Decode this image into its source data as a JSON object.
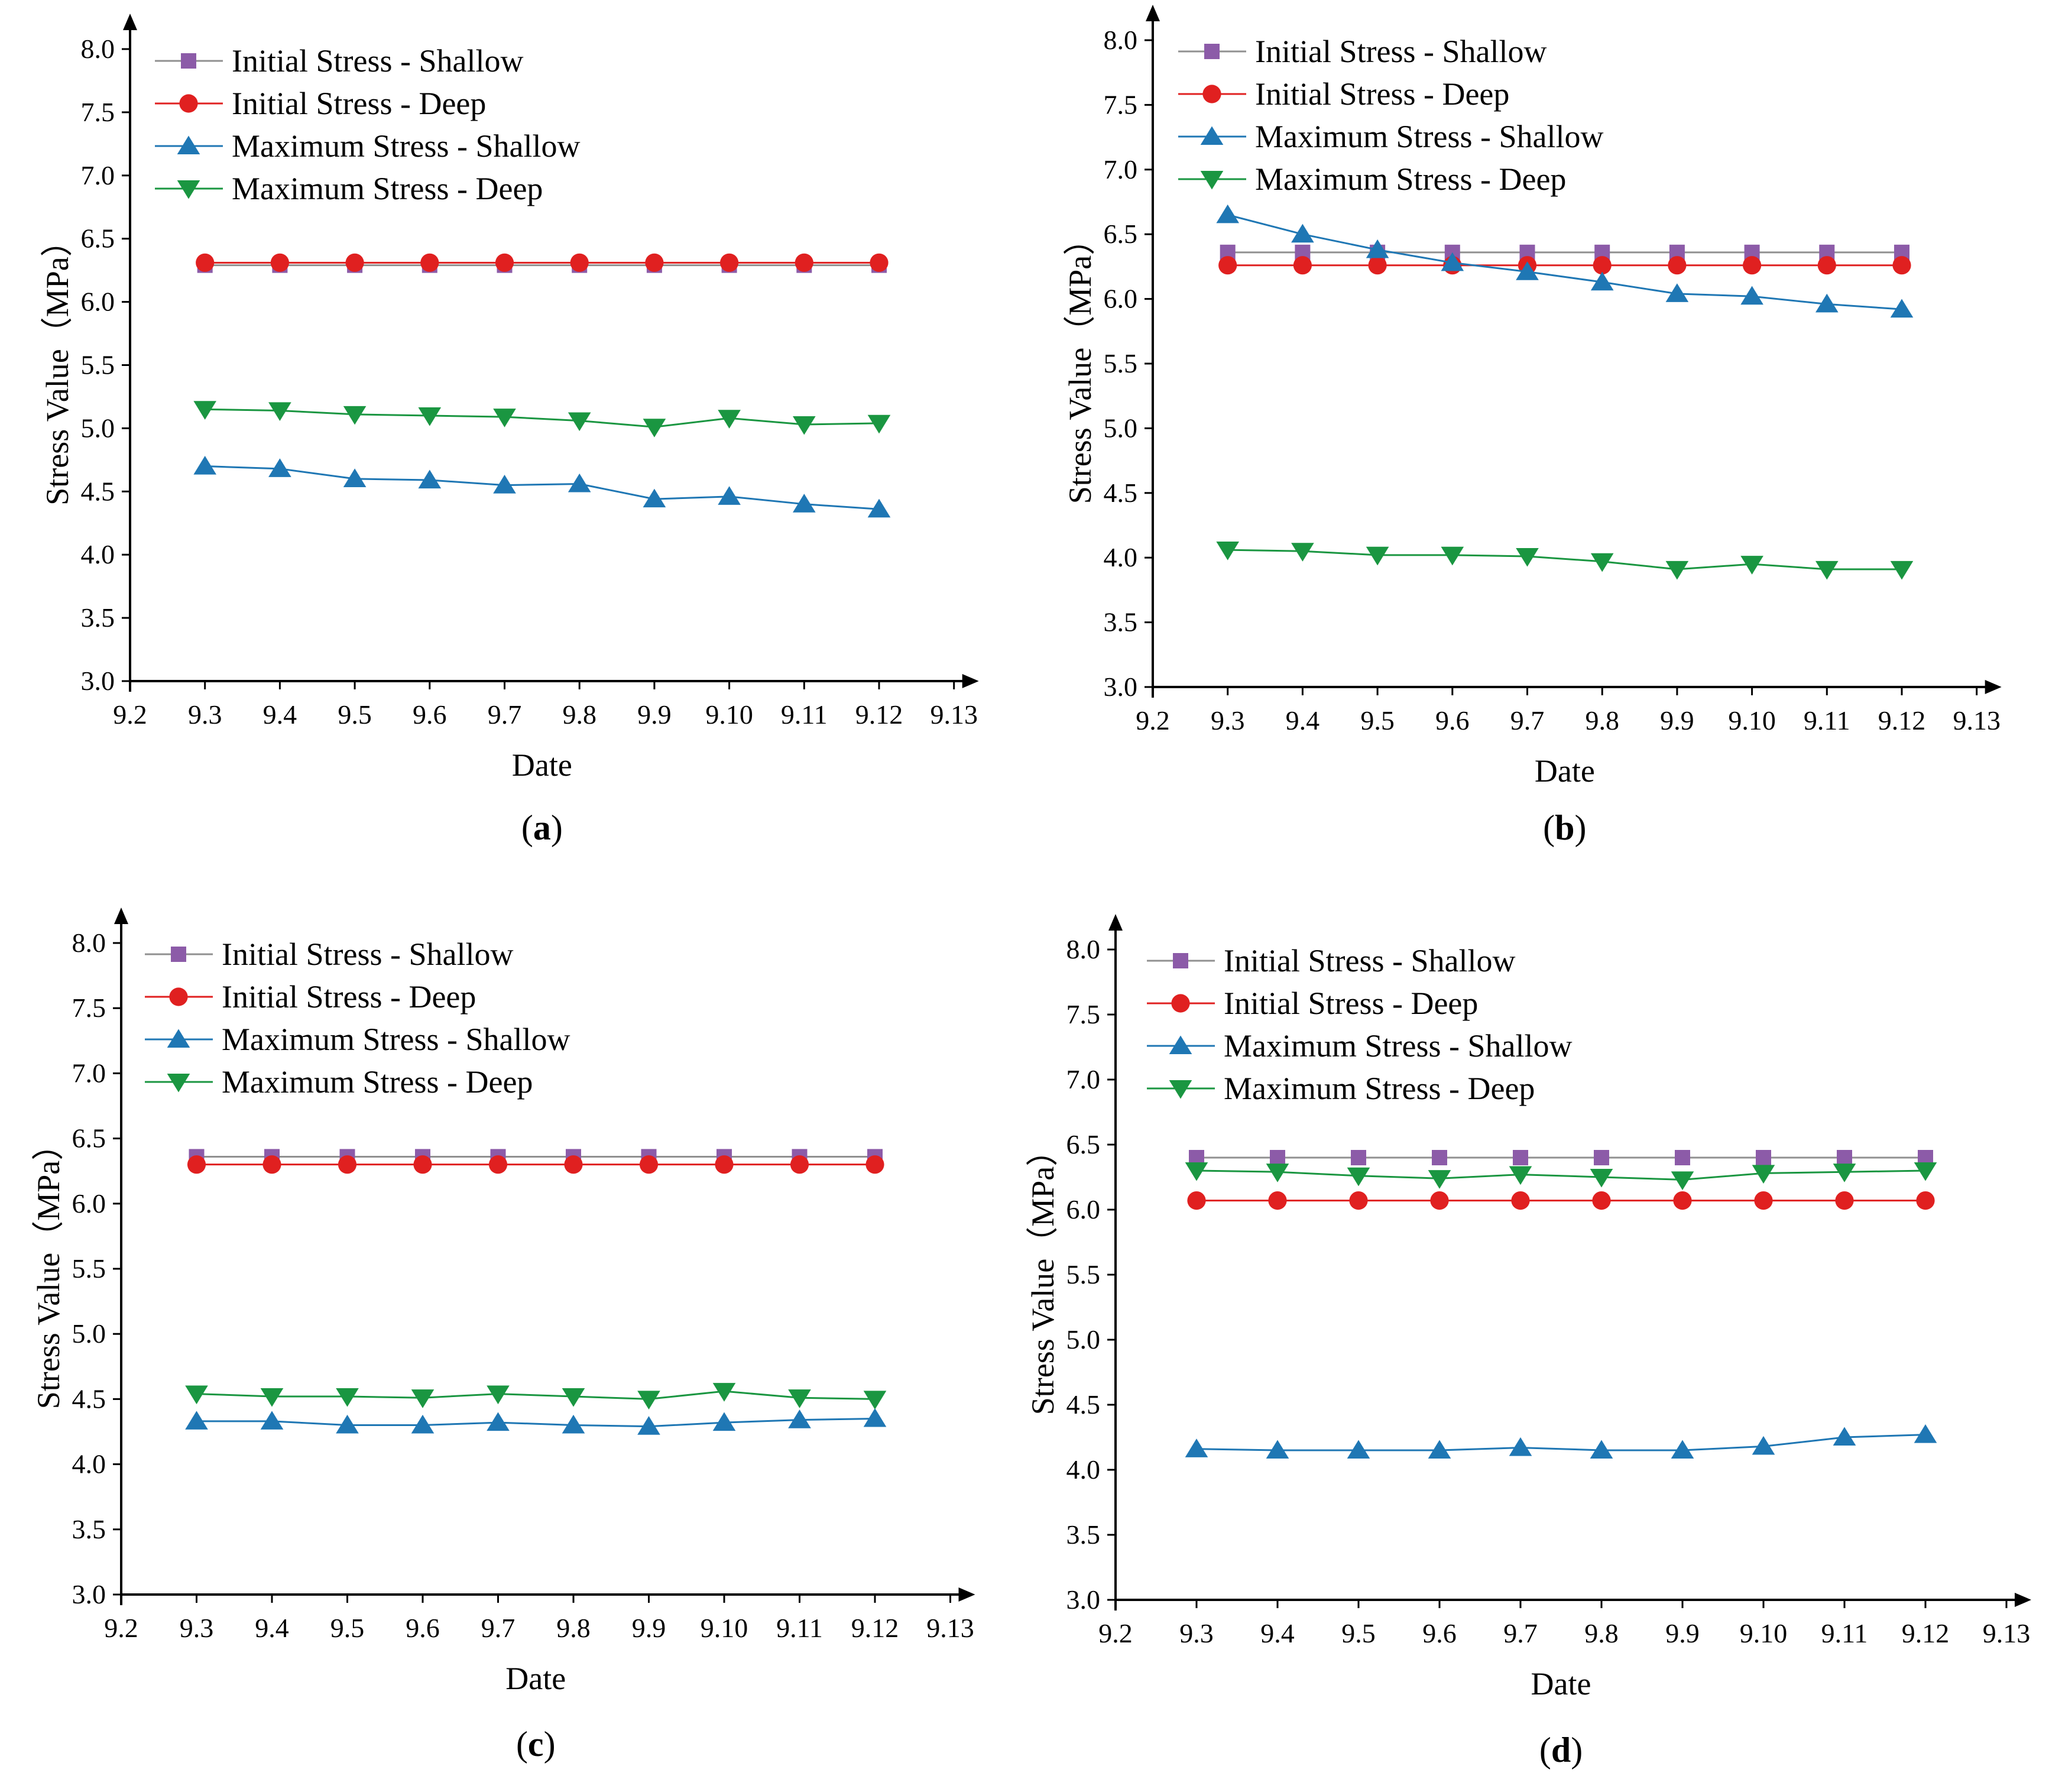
{
  "chart_data": [
    {
      "type": "line",
      "panel_label": "a",
      "xlabel": "Date",
      "ylabel": "Stress Value（MPa）",
      "x_ticks": [
        "9.2",
        "9.3",
        "9.4",
        "9.5",
        "9.6",
        "9.7",
        "9.8",
        "9.9",
        "9.10",
        "9.11",
        "9.12",
        "9.13"
      ],
      "categories": [
        "9.3",
        "9.4",
        "9.5",
        "9.6",
        "9.7",
        "9.8",
        "9.9",
        "9.10",
        "9.11",
        "9.12"
      ],
      "ylim": [
        3.0,
        8.0
      ],
      "y_ticks": [
        "3.0",
        "3.5",
        "4.0",
        "4.5",
        "5.0",
        "5.5",
        "6.0",
        "6.5",
        "7.0",
        "7.5",
        "8.0"
      ],
      "legend_position": "top-left",
      "series": [
        {
          "name": "Initial Stress - Shallow",
          "marker": "square",
          "color": "#8c5ba8",
          "line_color": "#909090",
          "values": [
            6.29,
            6.29,
            6.29,
            6.29,
            6.29,
            6.29,
            6.29,
            6.29,
            6.29,
            6.29
          ]
        },
        {
          "name": "Initial Stress - Deep",
          "marker": "circle",
          "color": "#e02020",
          "line_color": "#e02020",
          "values": [
            6.31,
            6.31,
            6.31,
            6.31,
            6.31,
            6.31,
            6.31,
            6.31,
            6.31,
            6.31
          ]
        },
        {
          "name": "Maximum Stress - Shallow",
          "marker": "triangle-up",
          "color": "#1f77b4",
          "line_color": "#1f77b4",
          "values": [
            4.7,
            4.68,
            4.6,
            4.59,
            4.55,
            4.56,
            4.44,
            4.46,
            4.4,
            4.36
          ]
        },
        {
          "name": "Maximum Stress - Deep",
          "marker": "triangle-down",
          "color": "#1a9641",
          "line_color": "#1a9641",
          "values": [
            5.15,
            5.14,
            5.11,
            5.1,
            5.09,
            5.06,
            5.01,
            5.08,
            5.03,
            5.04
          ]
        }
      ]
    },
    {
      "type": "line",
      "panel_label": "b",
      "xlabel": "Date",
      "ylabel": "Stress Value（MPa）",
      "x_ticks": [
        "9.2",
        "9.3",
        "9.4",
        "9.5",
        "9.6",
        "9.7",
        "9.8",
        "9.9",
        "9.10",
        "9.11",
        "9.12",
        "9.13"
      ],
      "categories": [
        "9.3",
        "9.4",
        "9.5",
        "9.6",
        "9.7",
        "9.8",
        "9.9",
        "9.10",
        "9.11",
        "9.12"
      ],
      "ylim": [
        3.0,
        8.0
      ],
      "y_ticks": [
        "3.0",
        "3.5",
        "4.0",
        "4.5",
        "5.0",
        "5.5",
        "6.0",
        "6.5",
        "7.0",
        "7.5",
        "8.0"
      ],
      "legend_position": "top-left",
      "series": [
        {
          "name": "Initial Stress - Shallow",
          "marker": "square",
          "color": "#8c5ba8",
          "line_color": "#909090",
          "values": [
            6.36,
            6.36,
            6.36,
            6.36,
            6.36,
            6.36,
            6.36,
            6.36,
            6.36,
            6.36
          ]
        },
        {
          "name": "Initial Stress - Deep",
          "marker": "circle",
          "color": "#e02020",
          "line_color": "#e02020",
          "values": [
            6.26,
            6.26,
            6.26,
            6.26,
            6.26,
            6.26,
            6.26,
            6.26,
            6.26,
            6.26
          ]
        },
        {
          "name": "Maximum Stress - Shallow",
          "marker": "triangle-up",
          "color": "#1f77b4",
          "line_color": "#1f77b4",
          "values": [
            6.65,
            6.5,
            6.38,
            6.28,
            6.21,
            6.13,
            6.04,
            6.02,
            5.96,
            5.92
          ]
        },
        {
          "name": "Maximum Stress - Deep",
          "marker": "triangle-down",
          "color": "#1a9641",
          "line_color": "#1a9641",
          "values": [
            4.06,
            4.05,
            4.02,
            4.02,
            4.01,
            3.97,
            3.91,
            3.95,
            3.91,
            3.91
          ]
        }
      ]
    },
    {
      "type": "line",
      "panel_label": "c",
      "xlabel": "Date",
      "ylabel": "Stress Value（MPa）",
      "x_ticks": [
        "9.2",
        "9.3",
        "9.4",
        "9.5",
        "9.6",
        "9.7",
        "9.8",
        "9.9",
        "9.10",
        "9.11",
        "9.12",
        "9.13"
      ],
      "categories": [
        "9.3",
        "9.4",
        "9.5",
        "9.6",
        "9.7",
        "9.8",
        "9.9",
        "9.10",
        "9.11",
        "9.12"
      ],
      "ylim": [
        3.0,
        8.0
      ],
      "y_ticks": [
        "3.0",
        "3.5",
        "4.0",
        "4.5",
        "5.0",
        "5.5",
        "6.0",
        "6.5",
        "7.0",
        "7.5",
        "8.0"
      ],
      "legend_position": "top-left",
      "series": [
        {
          "name": "Initial Stress - Shallow",
          "marker": "square",
          "color": "#8c5ba8",
          "line_color": "#909090",
          "values": [
            6.36,
            6.36,
            6.36,
            6.36,
            6.36,
            6.36,
            6.36,
            6.36,
            6.36,
            6.36
          ]
        },
        {
          "name": "Initial Stress - Deep",
          "marker": "circle",
          "color": "#e02020",
          "line_color": "#e02020",
          "values": [
            6.3,
            6.3,
            6.3,
            6.3,
            6.3,
            6.3,
            6.3,
            6.3,
            6.3,
            6.3
          ]
        },
        {
          "name": "Maximum Stress - Shallow",
          "marker": "triangle-up",
          "color": "#1f77b4",
          "line_color": "#1f77b4",
          "values": [
            4.33,
            4.33,
            4.3,
            4.3,
            4.32,
            4.3,
            4.29,
            4.32,
            4.34,
            4.35
          ]
        },
        {
          "name": "Maximum Stress - Deep",
          "marker": "triangle-down",
          "color": "#1a9641",
          "line_color": "#1a9641",
          "values": [
            4.54,
            4.52,
            4.52,
            4.51,
            4.54,
            4.52,
            4.5,
            4.56,
            4.51,
            4.5
          ]
        }
      ]
    },
    {
      "type": "line",
      "panel_label": "d",
      "xlabel": "Date",
      "ylabel": "Stress Value（MPa）",
      "x_ticks": [
        "9.2",
        "9.3",
        "9.4",
        "9.5",
        "9.6",
        "9.7",
        "9.8",
        "9.9",
        "9.10",
        "9.11",
        "9.12",
        "9.13"
      ],
      "categories": [
        "9.3",
        "9.4",
        "9.5",
        "9.6",
        "9.7",
        "9.8",
        "9.9",
        "9.10",
        "9.11",
        "9.12"
      ],
      "ylim": [
        3.0,
        8.0
      ],
      "y_ticks": [
        "3.0",
        "3.5",
        "4.0",
        "4.5",
        "5.0",
        "5.5",
        "6.0",
        "6.5",
        "7.0",
        "7.5",
        "8.0"
      ],
      "legend_position": "top-left",
      "series": [
        {
          "name": "Initial Stress - Shallow",
          "marker": "square",
          "color": "#8c5ba8",
          "line_color": "#909090",
          "values": [
            6.4,
            6.4,
            6.4,
            6.4,
            6.4,
            6.4,
            6.4,
            6.4,
            6.4,
            6.4
          ]
        },
        {
          "name": "Initial Stress - Deep",
          "marker": "circle",
          "color": "#e02020",
          "line_color": "#e02020",
          "values": [
            6.07,
            6.07,
            6.07,
            6.07,
            6.07,
            6.07,
            6.07,
            6.07,
            6.07,
            6.07
          ]
        },
        {
          "name": "Maximum Stress - Shallow",
          "marker": "triangle-up",
          "color": "#1f77b4",
          "line_color": "#1f77b4",
          "values": [
            4.16,
            4.15,
            4.15,
            4.15,
            4.17,
            4.15,
            4.15,
            4.18,
            4.25,
            4.27
          ]
        },
        {
          "name": "Maximum Stress - Deep",
          "marker": "triangle-down",
          "color": "#1a9641",
          "line_color": "#1a9641",
          "values": [
            6.3,
            6.29,
            6.26,
            6.24,
            6.27,
            6.25,
            6.23,
            6.28,
            6.29,
            6.3
          ]
        }
      ]
    }
  ]
}
